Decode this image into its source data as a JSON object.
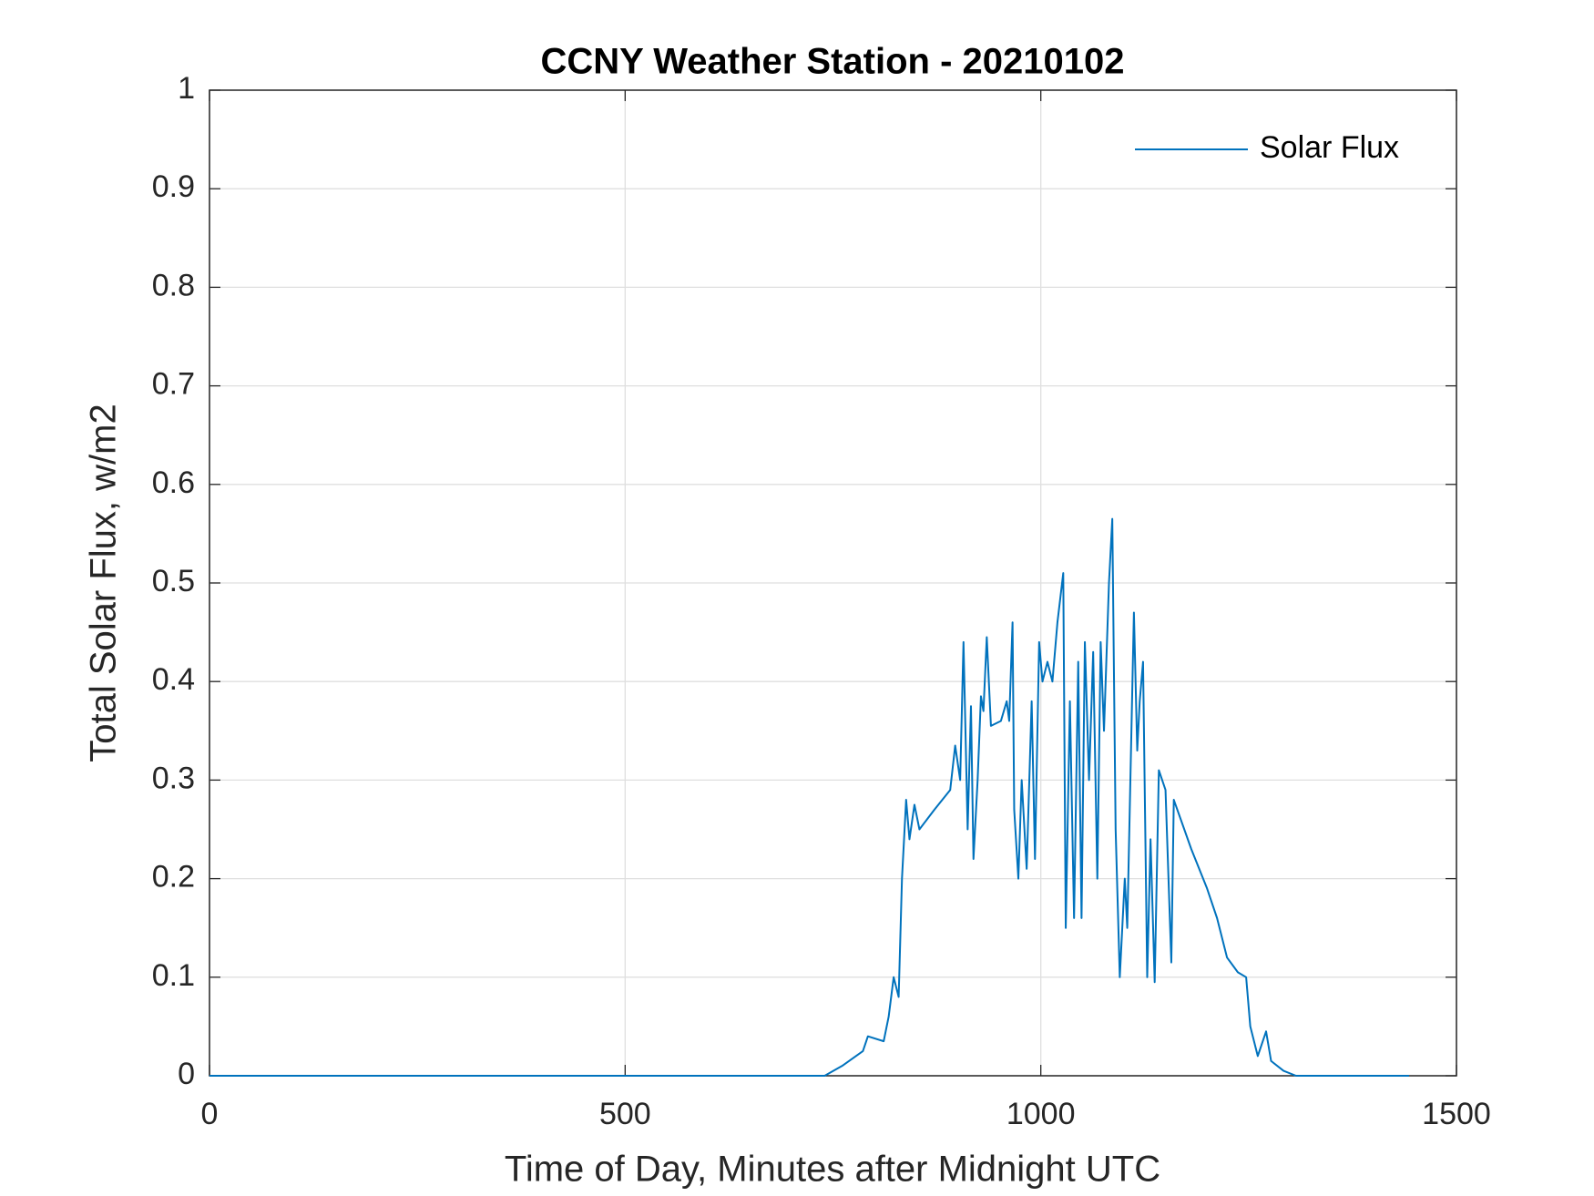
{
  "chart_data": {
    "type": "line",
    "title": "CCNY Weather Station - 20210102",
    "xlabel": "Time of Day, Minutes after Midnight UTC",
    "ylabel": "Total Solar Flux, w/m2",
    "xlim": [
      0,
      1500
    ],
    "xticks": [
      0,
      500,
      1000,
      1500
    ],
    "ylim": [
      0,
      1
    ],
    "yticks": [
      0,
      0.1,
      0.2,
      0.3,
      0.4,
      0.5,
      0.6,
      0.7,
      0.8,
      0.9,
      1
    ],
    "grid": true,
    "legend": "upper-right",
    "series": [
      {
        "name": "Solar Flux",
        "color": "#0072bd",
        "x": [
          0,
          740,
          761,
          786,
          792,
          811,
          817,
          823,
          829,
          833,
          838,
          842,
          848,
          854,
          872,
          891,
          897,
          903,
          907,
          912,
          916,
          919,
          924,
          928,
          931,
          935,
          940,
          952,
          959,
          962,
          966,
          968,
          973,
          977,
          983,
          989,
          993,
          998,
          1002,
          1008,
          1014,
          1020,
          1027,
          1030,
          1035,
          1040,
          1045,
          1049,
          1053,
          1058,
          1063,
          1068,
          1072,
          1076,
          1082,
          1086,
          1090,
          1095,
          1101,
          1104,
          1112,
          1116,
          1119,
          1123,
          1128,
          1132,
          1137,
          1142,
          1150,
          1157,
          1160,
          1181,
          1200,
          1212,
          1224,
          1237,
          1247,
          1252,
          1261,
          1271,
          1277,
          1292,
          1307,
          1443
        ],
        "values": [
          0,
          0,
          0.01,
          0.025,
          0.04,
          0.035,
          0.06,
          0.1,
          0.08,
          0.2,
          0.28,
          0.24,
          0.275,
          0.25,
          0.27,
          0.29,
          0.335,
          0.3,
          0.44,
          0.25,
          0.375,
          0.22,
          0.3,
          0.385,
          0.37,
          0.445,
          0.355,
          0.36,
          0.38,
          0.36,
          0.46,
          0.27,
          0.2,
          0.3,
          0.21,
          0.38,
          0.22,
          0.44,
          0.4,
          0.42,
          0.4,
          0.46,
          0.51,
          0.15,
          0.38,
          0.16,
          0.42,
          0.16,
          0.44,
          0.3,
          0.43,
          0.2,
          0.44,
          0.35,
          0.5,
          0.565,
          0.25,
          0.1,
          0.2,
          0.15,
          0.47,
          0.33,
          0.38,
          0.42,
          0.1,
          0.24,
          0.095,
          0.31,
          0.29,
          0.115,
          0.28,
          0.23,
          0.19,
          0.16,
          0.12,
          0.105,
          0.1,
          0.05,
          0.02,
          0.045,
          0.015,
          0.005,
          0,
          0
        ]
      }
    ]
  }
}
